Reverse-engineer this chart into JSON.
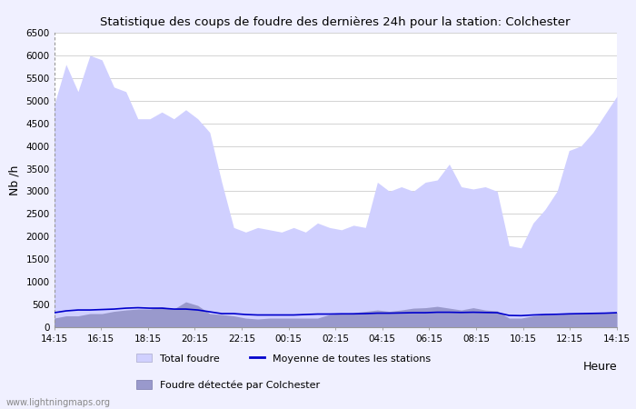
{
  "title": "Statistique des coups de foudre des dernières 24h pour la station: Colchester",
  "xlabel": "Heure",
  "ylabel": "Nb /h",
  "xlabels": [
    "14:15",
    "16:15",
    "18:15",
    "20:15",
    "22:15",
    "00:15",
    "02:15",
    "04:15",
    "06:15",
    "08:15",
    "10:15",
    "12:15",
    "14:15"
  ],
  "ylim": [
    0,
    6500
  ],
  "yticks": [
    0,
    500,
    1000,
    1500,
    2000,
    2500,
    3000,
    3500,
    4000,
    4500,
    5000,
    5500,
    6000,
    6500
  ],
  "bg_color": "#f0f0ff",
  "plot_bg_color": "#ffffff",
  "grid_color": "#cccccc",
  "total_foudre_color": "#d0d0ff",
  "colchester_color": "#9999cc",
  "moyenne_color": "#0000cc",
  "watermark": "www.lightningmaps.org",
  "total_foudre_values": [
    4900,
    5800,
    5200,
    6000,
    5900,
    5300,
    5200,
    4600,
    4600,
    4750,
    4600,
    4800,
    4600,
    4300,
    3200,
    2200,
    2100,
    2200,
    2150,
    2100,
    2200,
    2100,
    2300,
    2200,
    2150,
    2250,
    2200,
    3200,
    3000,
    3100,
    3000,
    3200,
    3250,
    3600,
    3100,
    3050,
    3100,
    3000,
    1800,
    1750,
    2300,
    2600,
    3000,
    3900,
    4000,
    4300,
    4700,
    5100
  ],
  "colchester_values": [
    200,
    250,
    250,
    300,
    300,
    350,
    380,
    400,
    400,
    450,
    400,
    560,
    480,
    300,
    280,
    250,
    200,
    180,
    200,
    200,
    200,
    200,
    200,
    280,
    300,
    320,
    350,
    380,
    350,
    380,
    420,
    430,
    460,
    420,
    380,
    430,
    380,
    360,
    200,
    200,
    250,
    280,
    280,
    300,
    310,
    320,
    330,
    330
  ],
  "moyenne_values": [
    320,
    360,
    380,
    380,
    390,
    400,
    420,
    430,
    420,
    420,
    400,
    400,
    380,
    340,
    300,
    300,
    280,
    270,
    270,
    270,
    270,
    280,
    290,
    290,
    295,
    295,
    300,
    310,
    310,
    315,
    320,
    320,
    330,
    330,
    325,
    330,
    325,
    320,
    260,
    255,
    270,
    280,
    285,
    295,
    300,
    305,
    310,
    320
  ]
}
